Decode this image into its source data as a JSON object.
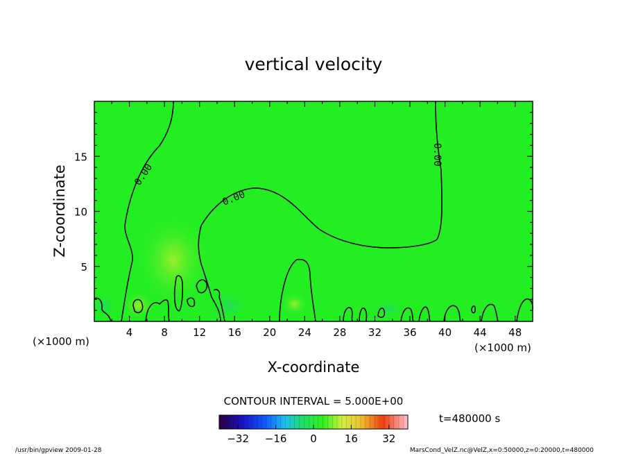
{
  "chart_data": {
    "type": "heatmap",
    "title": "vertical velocity",
    "xlabel": "X-coordinate",
    "ylabel": "Z-coordinate",
    "x_unit_left": "(×1000 m)",
    "x_unit_right": "(×1000 m)",
    "xlim": [
      0,
      50000
    ],
    "ylim": [
      0,
      20000
    ],
    "x_ticks": [
      "4",
      "8",
      "12",
      "16",
      "20",
      "24",
      "28",
      "32",
      "36",
      "40",
      "44",
      "48"
    ],
    "y_ticks": [
      "5",
      "10",
      "15"
    ],
    "contour_interval_label": "CONTOUR INTERVAL = 5.000E+00",
    "contour_labels": [
      "0.00",
      "0.00",
      "0.00"
    ],
    "colorbar": {
      "range": [
        -40,
        40
      ],
      "ticks": [
        "−32",
        "−16",
        "0",
        "16",
        "32"
      ]
    },
    "time_label": "t=480000 s",
    "field_background_color": "#22ee22",
    "grid": false
  },
  "footer": {
    "left": "/usr/bin/gpview   2009-01-28",
    "right": "MarsCond_VelZ.nc@VelZ,x=0:50000,z=0:20000,t=480000"
  }
}
